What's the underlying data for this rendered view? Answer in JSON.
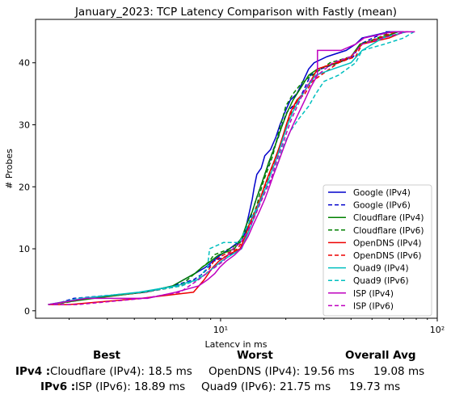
{
  "chart_data": {
    "type": "line",
    "title": "January_2023: TCP Latency Comparison with Fastly (mean)",
    "xlabel": "Latency in ms",
    "ylabel": "# Probes",
    "x_scale": "log",
    "xlim": [
      1.4,
      100
    ],
    "ylim": [
      -1.2,
      47
    ],
    "x_ticks": [
      {
        "value": 10,
        "label": "10¹"
      },
      {
        "value": 100,
        "label": "10²"
      }
    ],
    "y_ticks": [
      0,
      10,
      20,
      30,
      40
    ],
    "grid": false,
    "legend_position": "lower right",
    "series": [
      {
        "name": "Google (IPv4)",
        "color": "#0000cc",
        "dash": "solid",
        "points": [
          [
            1.6,
            1
          ],
          [
            2.4,
            2
          ],
          [
            4.5,
            3
          ],
          [
            6,
            4
          ],
          [
            7.6,
            6
          ],
          [
            8.5,
            7
          ],
          [
            9.2,
            8
          ],
          [
            10,
            9
          ],
          [
            11,
            10
          ],
          [
            12,
            11
          ],
          [
            12.8,
            12
          ],
          [
            13.2,
            14
          ],
          [
            13.6,
            16
          ],
          [
            14,
            18
          ],
          [
            14.3,
            20
          ],
          [
            14.7,
            22
          ],
          [
            15.4,
            23
          ],
          [
            16,
            25
          ],
          [
            17,
            26
          ],
          [
            18,
            28
          ],
          [
            18.8,
            30
          ],
          [
            19.8,
            32
          ],
          [
            21,
            34
          ],
          [
            22.5,
            35
          ],
          [
            24,
            37
          ],
          [
            25.5,
            39
          ],
          [
            27,
            40
          ],
          [
            31,
            41
          ],
          [
            38,
            42
          ],
          [
            42,
            43
          ],
          [
            45,
            44
          ],
          [
            60,
            45
          ],
          [
            70,
            45
          ]
        ]
      },
      {
        "name": "Google (IPv6)",
        "color": "#0000cc",
        "dash": "dashed",
        "points": [
          [
            1.7,
            1
          ],
          [
            2.1,
            2
          ],
          [
            4.5,
            3
          ],
          [
            6,
            4
          ],
          [
            7.5,
            5
          ],
          [
            8.3,
            6
          ],
          [
            9.3,
            8
          ],
          [
            11,
            9
          ],
          [
            12.4,
            10
          ],
          [
            12.9,
            12
          ],
          [
            13.5,
            14
          ],
          [
            14,
            16
          ],
          [
            14.6,
            18
          ],
          [
            15.3,
            20
          ],
          [
            16,
            22
          ],
          [
            16.8,
            24
          ],
          [
            17.5,
            26
          ],
          [
            18.5,
            28
          ],
          [
            19.2,
            30
          ],
          [
            20.2,
            32
          ],
          [
            21.5,
            33
          ],
          [
            23,
            34
          ],
          [
            24.5,
            36
          ],
          [
            26,
            38
          ],
          [
            29,
            39
          ],
          [
            35,
            40
          ],
          [
            41,
            41
          ],
          [
            44,
            43
          ],
          [
            58,
            45
          ],
          [
            68,
            45
          ]
        ]
      },
      {
        "name": "Cloudflare (IPv4)",
        "color": "#008000",
        "dash": "solid",
        "points": [
          [
            1.6,
            1
          ],
          [
            2.6,
            2
          ],
          [
            4.4,
            3
          ],
          [
            6,
            4
          ],
          [
            7.6,
            6
          ],
          [
            8.2,
            7
          ],
          [
            9,
            8
          ],
          [
            9.8,
            9
          ],
          [
            11.6,
            10
          ],
          [
            12.6,
            12
          ],
          [
            13.2,
            14
          ],
          [
            14,
            16
          ],
          [
            14.6,
            18
          ],
          [
            15.3,
            20
          ],
          [
            16,
            22
          ],
          [
            16.7,
            24
          ],
          [
            17.6,
            26
          ],
          [
            18.4,
            28
          ],
          [
            19.3,
            30
          ],
          [
            20.3,
            32
          ],
          [
            21.6,
            34
          ],
          [
            23.5,
            36
          ],
          [
            25.5,
            38
          ],
          [
            28,
            39
          ],
          [
            35,
            40
          ],
          [
            40,
            41
          ],
          [
            44,
            43
          ],
          [
            55,
            44
          ],
          [
            66,
            45
          ]
        ]
      },
      {
        "name": "Cloudflare (IPv6)",
        "color": "#008000",
        "dash": "dashed",
        "points": [
          [
            1.7,
            1
          ],
          [
            2.5,
            2
          ],
          [
            4.5,
            3
          ],
          [
            6.5,
            4
          ],
          [
            7.6,
            6
          ],
          [
            8.2,
            7
          ],
          [
            8.9,
            8
          ],
          [
            9.3,
            9
          ],
          [
            11,
            10
          ],
          [
            12.3,
            11
          ],
          [
            13.2,
            13
          ],
          [
            14,
            15
          ],
          [
            14.7,
            17
          ],
          [
            15.2,
            19
          ],
          [
            15.8,
            21
          ],
          [
            16.6,
            23
          ],
          [
            17.4,
            25
          ],
          [
            18,
            27
          ],
          [
            18.6,
            29
          ],
          [
            19.3,
            31
          ],
          [
            20,
            33
          ],
          [
            21.6,
            35
          ],
          [
            24,
            37
          ],
          [
            26.5,
            38
          ],
          [
            32,
            40
          ],
          [
            40,
            41
          ],
          [
            45,
            43
          ],
          [
            62,
            45
          ]
        ]
      },
      {
        "name": "OpenDNS (IPv4)",
        "color": "#ee0000",
        "dash": "solid",
        "points": [
          [
            1.6,
            1
          ],
          [
            2,
            1
          ],
          [
            4.3,
            2
          ],
          [
            7.5,
            3
          ],
          [
            8.4,
            5
          ],
          [
            9.2,
            7
          ],
          [
            9.8,
            8
          ],
          [
            10.8,
            9
          ],
          [
            12.3,
            10
          ],
          [
            13,
            12
          ],
          [
            13.6,
            14
          ],
          [
            14.4,
            16
          ],
          [
            15.2,
            18
          ],
          [
            15.9,
            20
          ],
          [
            16.7,
            22
          ],
          [
            17.6,
            24
          ],
          [
            18.5,
            26
          ],
          [
            19.3,
            28
          ],
          [
            20.1,
            30
          ],
          [
            21,
            32
          ],
          [
            22.5,
            34
          ],
          [
            24,
            35
          ],
          [
            26,
            37
          ],
          [
            28,
            39
          ],
          [
            34,
            40
          ],
          [
            40,
            41
          ],
          [
            45,
            43
          ],
          [
            60,
            44
          ],
          [
            70,
            45
          ]
        ]
      },
      {
        "name": "OpenDNS (IPv6)",
        "color": "#ee0000",
        "dash": "dashed",
        "points": [
          [
            1.7,
            1
          ],
          [
            2.3,
            2
          ],
          [
            4.5,
            3
          ],
          [
            6.5,
            4
          ],
          [
            7.8,
            5
          ],
          [
            8.6,
            6
          ],
          [
            9.3,
            8
          ],
          [
            10.3,
            9
          ],
          [
            12,
            10
          ],
          [
            13,
            12
          ],
          [
            13.8,
            14
          ],
          [
            14.5,
            16
          ],
          [
            15.3,
            18
          ],
          [
            16,
            20
          ],
          [
            16.8,
            22
          ],
          [
            17.7,
            24
          ],
          [
            18.5,
            26
          ],
          [
            19.4,
            28
          ],
          [
            20.3,
            30
          ],
          [
            21.3,
            32
          ],
          [
            22.8,
            34
          ],
          [
            24.5,
            35
          ],
          [
            26.5,
            37
          ],
          [
            29,
            38
          ],
          [
            35,
            40
          ],
          [
            42,
            41
          ],
          [
            45,
            43
          ],
          [
            64,
            45
          ]
        ]
      },
      {
        "name": "Quad9 (IPv4)",
        "color": "#00bfbf",
        "dash": "solid",
        "points": [
          [
            1.6,
            1
          ],
          [
            2.3,
            2
          ],
          [
            4.2,
            3
          ],
          [
            6.2,
            4
          ],
          [
            7.8,
            5
          ],
          [
            8.6,
            6
          ],
          [
            9.3,
            7
          ],
          [
            10.1,
            8
          ],
          [
            11.2,
            9
          ],
          [
            12.5,
            10
          ],
          [
            13.2,
            12
          ],
          [
            13.9,
            14
          ],
          [
            14.6,
            16
          ],
          [
            15.4,
            18
          ],
          [
            16.2,
            20
          ],
          [
            17,
            22
          ],
          [
            17.9,
            24
          ],
          [
            18.7,
            26
          ],
          [
            19.5,
            28
          ],
          [
            20.4,
            30
          ],
          [
            21.5,
            32
          ],
          [
            23,
            34
          ],
          [
            25,
            36
          ],
          [
            27.5,
            38
          ],
          [
            33,
            39
          ],
          [
            40,
            40
          ],
          [
            45,
            42
          ],
          [
            56,
            44
          ],
          [
            72,
            45
          ]
        ]
      },
      {
        "name": "Quad9 (IPv6)",
        "color": "#00bfbf",
        "dash": "dashed",
        "points": [
          [
            1.7,
            1
          ],
          [
            2.2,
            2
          ],
          [
            4.4,
            3
          ],
          [
            6.6,
            4
          ],
          [
            7.8,
            5
          ],
          [
            8.7,
            7
          ],
          [
            8.9,
            10
          ],
          [
            10.3,
            11
          ],
          [
            12.2,
            11
          ],
          [
            13,
            13
          ],
          [
            13.9,
            15
          ],
          [
            14.9,
            17
          ],
          [
            15.8,
            19
          ],
          [
            16.9,
            21
          ],
          [
            18,
            23
          ],
          [
            18.8,
            25
          ],
          [
            19.7,
            27
          ],
          [
            21,
            29
          ],
          [
            23,
            31
          ],
          [
            25.5,
            33
          ],
          [
            27.5,
            35
          ],
          [
            30,
            37
          ],
          [
            35,
            38
          ],
          [
            42,
            40
          ],
          [
            45,
            42
          ],
          [
            57,
            43
          ],
          [
            70,
            44
          ],
          [
            78,
            45
          ]
        ]
      },
      {
        "name": "ISP (IPv4)",
        "color": "#bf00bf",
        "dash": "solid",
        "points": [
          [
            1.6,
            1
          ],
          [
            2.4,
            2
          ],
          [
            4.6,
            2
          ],
          [
            6.2,
            3
          ],
          [
            7.9,
            4
          ],
          [
            8.7,
            5
          ],
          [
            9.4,
            6
          ],
          [
            9.9,
            7
          ],
          [
            10.6,
            8
          ],
          [
            11.6,
            9
          ],
          [
            12.4,
            10
          ],
          [
            13.4,
            12
          ],
          [
            14.2,
            14
          ],
          [
            15.1,
            16
          ],
          [
            16,
            18
          ],
          [
            16.8,
            20
          ],
          [
            17.6,
            22
          ],
          [
            18.5,
            24
          ],
          [
            19.4,
            26
          ],
          [
            20.4,
            28
          ],
          [
            21.6,
            30
          ],
          [
            23,
            32
          ],
          [
            24.5,
            34
          ],
          [
            26,
            36
          ],
          [
            28,
            38
          ],
          [
            28,
            42
          ],
          [
            36,
            42
          ],
          [
            42,
            43
          ],
          [
            46,
            44
          ],
          [
            62,
            45
          ],
          [
            76,
            45
          ]
        ]
      },
      {
        "name": "ISP (IPv6)",
        "color": "#bf00bf",
        "dash": "dashed",
        "points": [
          [
            1.7,
            1
          ],
          [
            2.2,
            1
          ],
          [
            4.4,
            2
          ],
          [
            6.5,
            3
          ],
          [
            7.9,
            5
          ],
          [
            8.6,
            6
          ],
          [
            9.4,
            7
          ],
          [
            10.3,
            8
          ],
          [
            11.4,
            10
          ],
          [
            12.4,
            11
          ],
          [
            13.4,
            13
          ],
          [
            14.3,
            15
          ],
          [
            15.1,
            17
          ],
          [
            16,
            19
          ],
          [
            17,
            21
          ],
          [
            17.7,
            23
          ],
          [
            18.5,
            25
          ],
          [
            19.4,
            27
          ],
          [
            20.3,
            29
          ],
          [
            21.3,
            31
          ],
          [
            22.6,
            33
          ],
          [
            24,
            35
          ],
          [
            25.8,
            37
          ],
          [
            28,
            38
          ],
          [
            33,
            40
          ],
          [
            40,
            41
          ],
          [
            45,
            43
          ],
          [
            56,
            44
          ],
          [
            72,
            45
          ],
          [
            80,
            45
          ]
        ]
      }
    ]
  },
  "summary": {
    "headers": {
      "best": "Best",
      "worst": "Worst",
      "avg": "Overall Avg"
    },
    "rows": [
      {
        "label": "IPv4 :",
        "best": "Cloudflare (IPv4): 18.5 ms",
        "worst": "OpenDNS (IPv4): 19.56 ms",
        "avg": "19.08 ms"
      },
      {
        "label": "IPv6 :",
        "best": "ISP (IPv6): 18.89 ms",
        "worst": "Quad9 (IPv6): 21.75 ms",
        "avg": "19.73 ms"
      }
    ]
  }
}
